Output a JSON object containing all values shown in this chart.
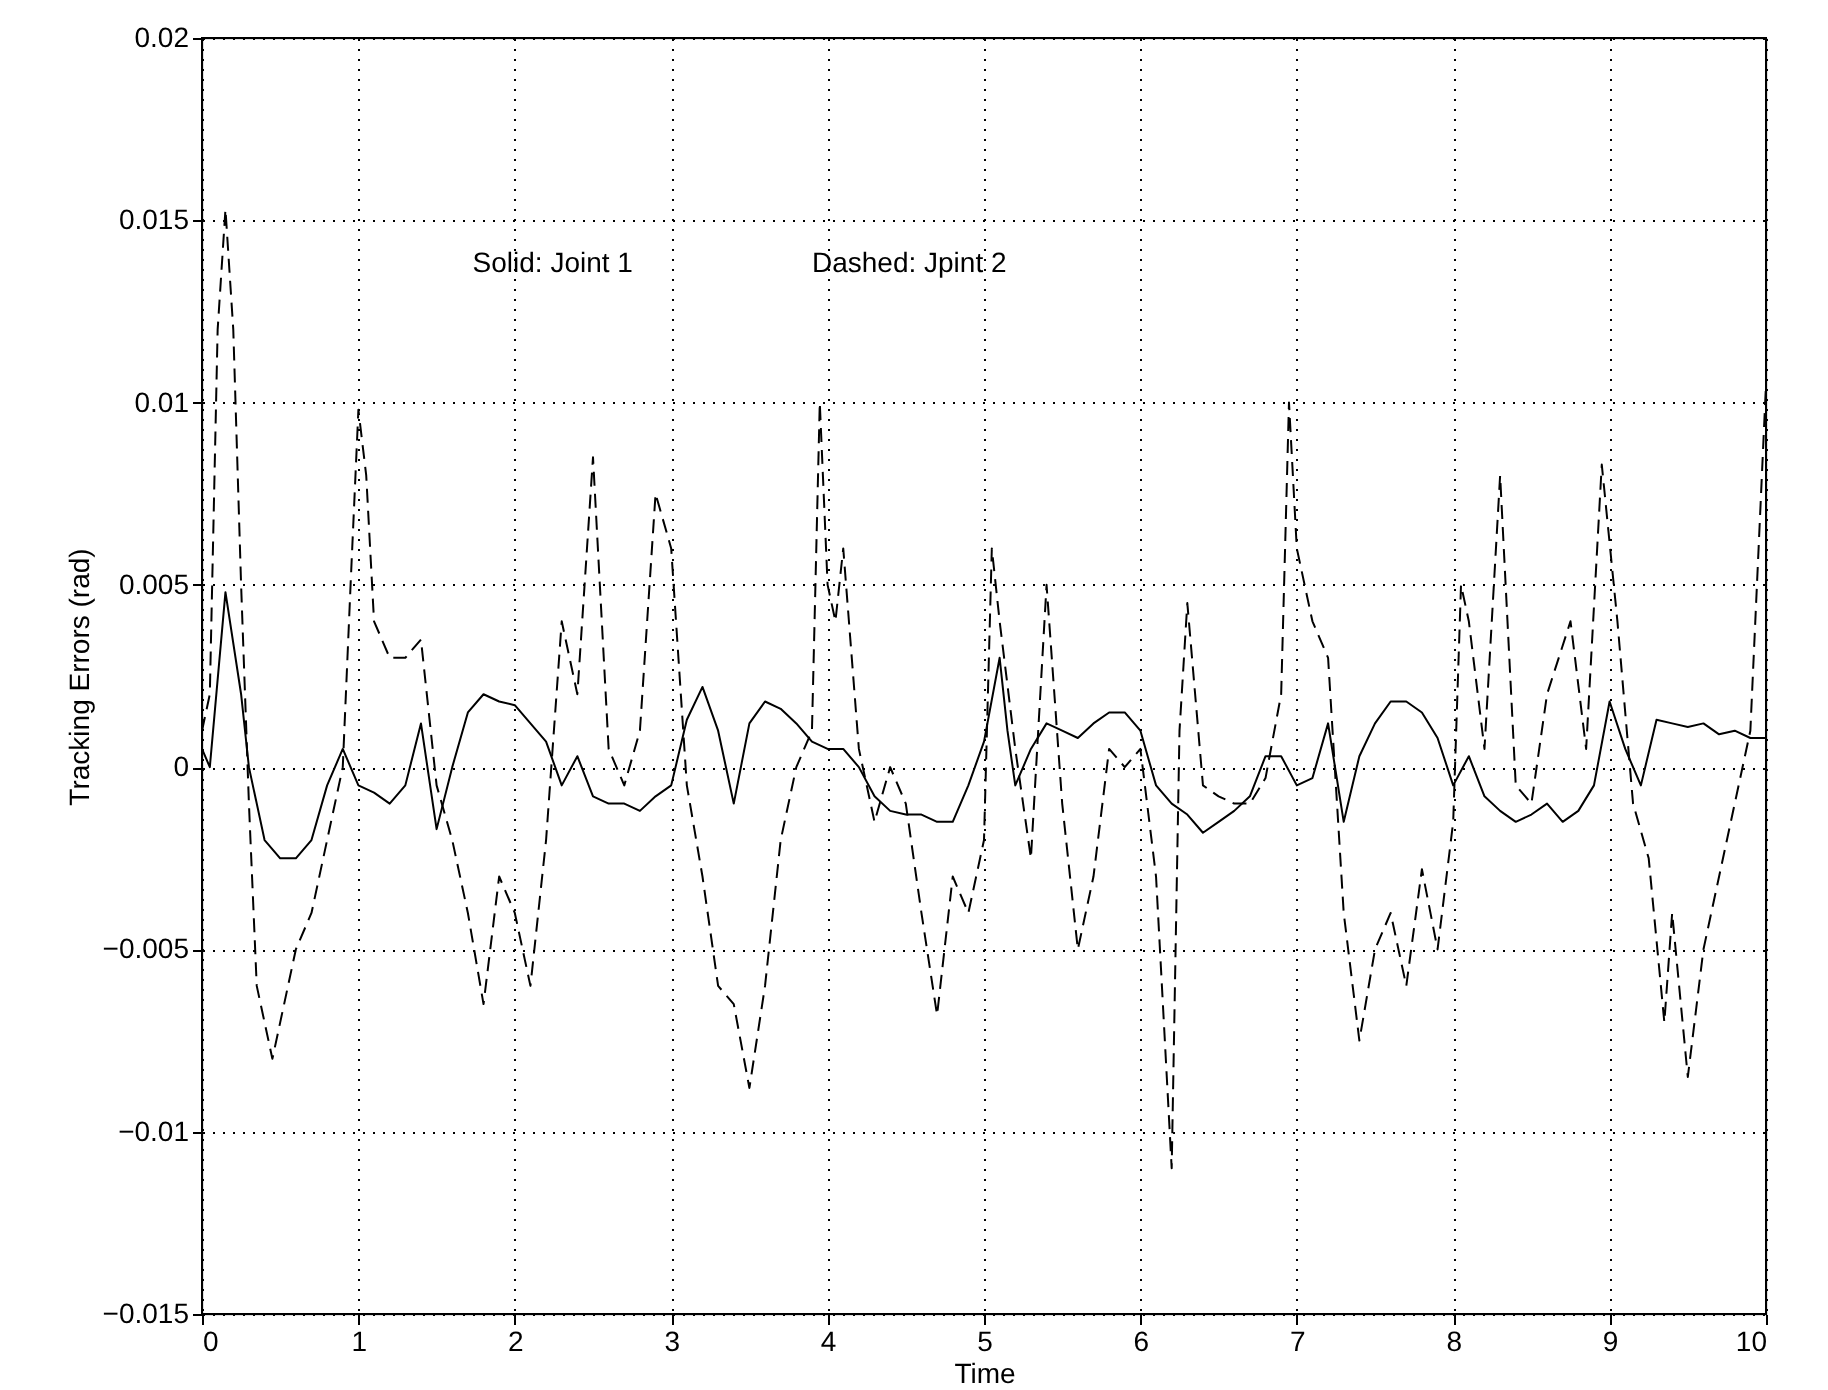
{
  "chart_data": {
    "type": "line",
    "xlabel": "Time",
    "ylabel": "Tracking Errors (rad)",
    "annotations": [
      "Solid: Joint 1",
      "Dashed: Jpint 2"
    ],
    "xlim": [
      0,
      10
    ],
    "xticks": [
      0,
      1,
      2,
      3,
      4,
      5,
      6,
      7,
      8,
      9,
      10
    ],
    "ylim": [
      -0.015,
      0.02
    ],
    "yticks": [
      -0.015,
      -0.01,
      -0.005,
      0,
      0.005,
      0.01,
      0.015,
      0.02
    ],
    "grid": true,
    "marker": "none",
    "series": [
      {
        "color": "#000000",
        "line_style": "solid",
        "x": [
          0,
          0.05,
          0.15,
          0.25,
          0.3,
          0.4,
          0.5,
          0.6,
          0.7,
          0.8,
          0.9,
          1.0,
          1.1,
          1.2,
          1.3,
          1.4,
          1.5,
          1.6,
          1.7,
          1.8,
          1.9,
          2.0,
          2.1,
          2.2,
          2.3,
          2.4,
          2.5,
          2.6,
          2.7,
          2.8,
          2.9,
          3.0,
          3.1,
          3.2,
          3.3,
          3.4,
          3.5,
          3.6,
          3.7,
          3.8,
          3.9,
          4.0,
          4.1,
          4.2,
          4.3,
          4.4,
          4.5,
          4.6,
          4.7,
          4.8,
          4.9,
          5.0,
          5.1,
          5.15,
          5.2,
          5.3,
          5.4,
          5.5,
          5.6,
          5.7,
          5.8,
          5.9,
          6.0,
          6.1,
          6.2,
          6.3,
          6.4,
          6.5,
          6.6,
          6.7,
          6.8,
          6.9,
          7.0,
          7.1,
          7.2,
          7.3,
          7.4,
          7.5,
          7.6,
          7.7,
          7.8,
          7.9,
          8.0,
          8.1,
          8.2,
          8.3,
          8.4,
          8.5,
          8.6,
          8.7,
          8.8,
          8.9,
          9.0,
          9.1,
          9.2,
          9.3,
          9.4,
          9.5,
          9.6,
          9.7,
          9.8,
          9.9,
          10
        ],
        "values": [
          0.0005,
          0,
          0.0048,
          0.002,
          0,
          -0.002,
          -0.0025,
          -0.0025,
          -0.002,
          -0.0005,
          0.0005,
          -0.0005,
          -0.0007,
          -0.001,
          -0.0005,
          0.0012,
          -0.0017,
          0,
          0.0015,
          0.002,
          0.0018,
          0.0017,
          0.0012,
          0.0007,
          -0.0005,
          0.0003,
          -0.0008,
          -0.001,
          -0.001,
          -0.0012,
          -0.0008,
          -0.0005,
          0.0013,
          0.0022,
          0.001,
          -0.001,
          0.0012,
          0.0018,
          0.0016,
          0.0012,
          0.0007,
          0.0005,
          0.0005,
          0,
          -0.0008,
          -0.0012,
          -0.0013,
          -0.0013,
          -0.0015,
          -0.0015,
          -0.0005,
          0.0007,
          0.003,
          0.001,
          -0.0005,
          0.0005,
          0.0012,
          0.001,
          0.0008,
          0.0012,
          0.0015,
          0.0015,
          0.001,
          -0.0005,
          -0.001,
          -0.0013,
          -0.0018,
          -0.0015,
          -0.0012,
          -0.0008,
          0.0003,
          0.0003,
          -0.0005,
          -0.0003,
          0.0012,
          -0.0015,
          0.0003,
          0.0012,
          0.0018,
          0.0018,
          0.0015,
          0.0008,
          -0.0005,
          0.0003,
          -0.0008,
          -0.0012,
          -0.0015,
          -0.0013,
          -0.001,
          -0.0015,
          -0.0012,
          -0.0005,
          0.0018,
          0.0005,
          -0.0005,
          0.0013,
          0.0012,
          0.0011,
          0.0012,
          0.0009,
          0.001,
          0.0008,
          0.0008
        ]
      },
      {
        "color": "#000000",
        "line_style": "dashed",
        "x": [
          0,
          0.05,
          0.1,
          0.15,
          0.2,
          0.25,
          0.3,
          0.35,
          0.4,
          0.45,
          0.5,
          0.6,
          0.7,
          0.8,
          0.9,
          0.95,
          1.0,
          1.05,
          1.1,
          1.2,
          1.3,
          1.4,
          1.5,
          1.6,
          1.7,
          1.8,
          1.9,
          2.0,
          2.1,
          2.2,
          2.3,
          2.4,
          2.5,
          2.6,
          2.7,
          2.8,
          2.9,
          3.0,
          3.1,
          3.2,
          3.3,
          3.4,
          3.5,
          3.6,
          3.7,
          3.8,
          3.9,
          3.95,
          4.0,
          4.05,
          4.1,
          4.2,
          4.3,
          4.4,
          4.5,
          4.6,
          4.7,
          4.8,
          4.9,
          5.0,
          5.05,
          5.1,
          5.2,
          5.3,
          5.4,
          5.5,
          5.6,
          5.7,
          5.8,
          5.9,
          6.0,
          6.1,
          6.2,
          6.25,
          6.3,
          6.4,
          6.5,
          6.6,
          6.7,
          6.8,
          6.9,
          6.95,
          7.0,
          7.1,
          7.2,
          7.3,
          7.4,
          7.5,
          7.6,
          7.7,
          7.8,
          7.9,
          8.0,
          8.05,
          8.1,
          8.2,
          8.3,
          8.4,
          8.5,
          8.6,
          8.75,
          8.85,
          8.95,
          9.05,
          9.15,
          9.25,
          9.35,
          9.4,
          9.5,
          9.6,
          9.7,
          9.8,
          9.9,
          10
        ],
        "values": [
          0.001,
          0.002,
          0.012,
          0.0153,
          0.012,
          0.005,
          -0.001,
          -0.006,
          -0.007,
          -0.008,
          -0.007,
          -0.005,
          -0.004,
          -0.002,
          0,
          0.005,
          0.0098,
          0.008,
          0.004,
          0.003,
          0.003,
          0.0035,
          -0.0005,
          -0.002,
          -0.004,
          -0.0065,
          -0.003,
          -0.004,
          -0.006,
          -0.002,
          0.004,
          0.002,
          0.0085,
          0.0005,
          -0.0005,
          0.001,
          0.0075,
          0.006,
          -0.0005,
          -0.003,
          -0.006,
          -0.0065,
          -0.0088,
          -0.006,
          -0.002,
          0,
          0.001,
          0.01,
          0.005,
          0.004,
          0.006,
          0.0005,
          -0.0015,
          0,
          -0.001,
          -0.004,
          -0.0068,
          -0.003,
          -0.004,
          -0.002,
          0.006,
          0.004,
          0.0005,
          -0.0025,
          0.005,
          -0.001,
          -0.005,
          -0.003,
          0.0005,
          0,
          0.0005,
          -0.003,
          -0.011,
          0.001,
          0.0045,
          -0.0005,
          -0.0008,
          -0.001,
          -0.001,
          -0.0003,
          0.002,
          0.01,
          0.006,
          0.004,
          0.003,
          -0.004,
          -0.0075,
          -0.005,
          -0.004,
          -0.006,
          -0.0028,
          -0.005,
          -0.0015,
          0.005,
          0.004,
          0.0005,
          0.008,
          -0.0005,
          -0.001,
          0.002,
          0.004,
          0.0005,
          0.0083,
          0.004,
          -0.001,
          -0.0025,
          -0.007,
          -0.004,
          -0.0085,
          -0.005,
          -0.003,
          -0.001,
          0.001,
          0.0105
        ]
      }
    ]
  }
}
